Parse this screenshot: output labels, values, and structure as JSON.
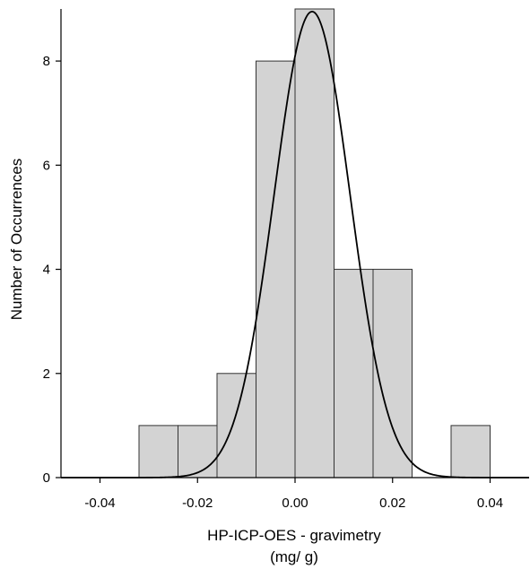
{
  "chart_data": {
    "type": "bar",
    "subtype": "histogram",
    "title": "",
    "xlabel": "HP-ICP-OES - gravimetry",
    "xlabel_unit": "(mg/ g)",
    "ylabel": "Number of Occurrences",
    "xlim": [
      -0.048,
      0.048
    ],
    "ylim": [
      0,
      9
    ],
    "x_ticks": [
      -0.04,
      -0.02,
      0.0,
      0.02,
      0.04
    ],
    "x_tick_labels": [
      "-0.04",
      "-0.02",
      "0.00",
      "0.02",
      "0.04"
    ],
    "y_ticks": [
      0,
      2,
      4,
      6,
      8
    ],
    "y_tick_labels": [
      "0",
      "2",
      "4",
      "6",
      "8"
    ],
    "bins": [
      {
        "x0": -0.032,
        "x1": -0.024,
        "count": 1
      },
      {
        "x0": -0.024,
        "x1": -0.016,
        "count": 1
      },
      {
        "x0": -0.016,
        "x1": -0.008,
        "count": 2
      },
      {
        "x0": -0.008,
        "x1": 0.0,
        "count": 8
      },
      {
        "x0": 0.0,
        "x1": 0.008,
        "count": 9
      },
      {
        "x0": 0.008,
        "x1": 0.016,
        "count": 4
      },
      {
        "x0": 0.016,
        "x1": 0.024,
        "count": 4
      },
      {
        "x0": 0.024,
        "x1": 0.032,
        "count": 0
      },
      {
        "x0": 0.032,
        "x1": 0.04,
        "count": 1
      }
    ],
    "fit_curve": {
      "type": "normal",
      "mean": 0.0035,
      "sd": 0.0078,
      "peak": 8.95
    },
    "grid": false,
    "colors": {
      "bar_fill": "#d3d3d3",
      "bar_stroke": "#333333",
      "curve": "#000000",
      "axis": "#000000"
    }
  }
}
